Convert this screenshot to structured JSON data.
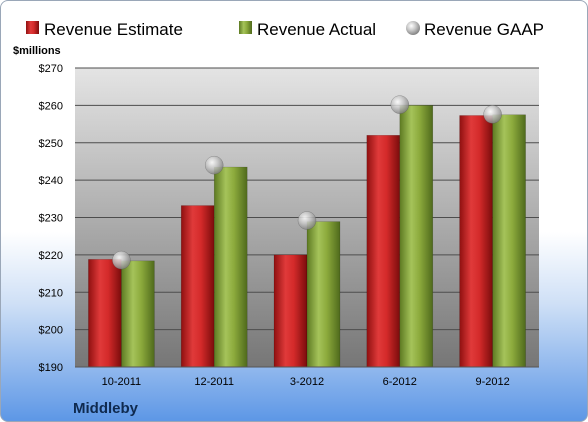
{
  "chart_data": {
    "type": "bar",
    "categories": [
      "10-2011",
      "12-2011",
      "3-2012",
      "6-2012",
      "9-2012"
    ],
    "series": [
      {
        "name": "Revenue Estimate",
        "values": [
          218.8,
          233.2,
          220.0,
          252.0,
          257.3
        ],
        "color": "#d42a2a"
      },
      {
        "name": "Revenue Actual",
        "values": [
          218.4,
          243.5,
          228.9,
          260.0,
          257.5
        ],
        "color": "#8caa3c"
      },
      {
        "name": "Revenue GAAP",
        "values": [
          218.6,
          244.0,
          229.2,
          260.2,
          257.6
        ],
        "color": "#c0c0c0",
        "marker": "sphere"
      }
    ],
    "ylim": [
      190,
      270
    ],
    "yticks": [
      "$190",
      "$200",
      "$210",
      "$220",
      "$230",
      "$240",
      "$250",
      "$260",
      "$270"
    ],
    "yticks_values": [
      190,
      200,
      210,
      220,
      230,
      240,
      250,
      260,
      270
    ],
    "ylabel": "$millions",
    "company": "Middleby",
    "legend_placement": "top",
    "grid": true
  }
}
